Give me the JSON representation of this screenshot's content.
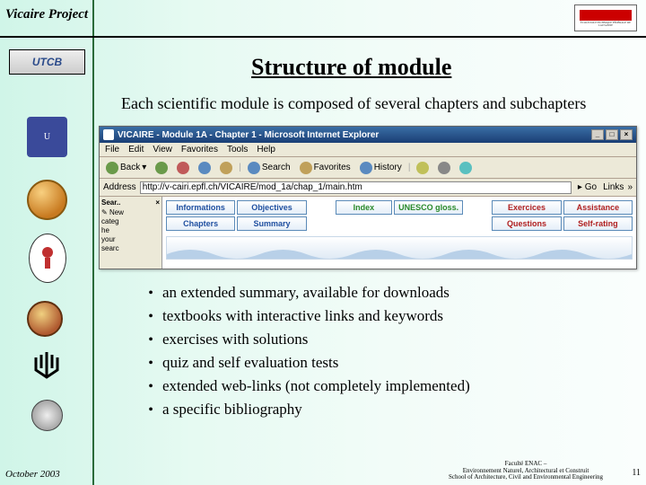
{
  "header": {
    "project": "Vicaire Project"
  },
  "logos": {
    "epfl_sub": "ÉCOLE POLYTECHNIQUE FÉDÉRALE DE LAUSANNE",
    "utcb_text": "UTCB"
  },
  "title": "Structure of module",
  "subtitle": "Each scientific module is composed of several chapters and subchapters",
  "browser": {
    "window_title": "VICAIRE - Module 1A - Chapter 1 - Microsoft Internet Explorer",
    "menus": [
      "File",
      "Edit",
      "View",
      "Favorites",
      "Tools",
      "Help"
    ],
    "toolbar": {
      "back": "Back",
      "search": "Search",
      "favorites": "Favorites",
      "history": "History"
    },
    "address_label": "Address",
    "address_value": "http://v-cairi.epfl.ch/VICAIRE/mod_1a/chap_1/main.htm",
    "go": "Go",
    "links": "Links",
    "leftpane": {
      "title": "Sear..",
      "new": "New",
      "items": [
        "categ",
        "he",
        "your",
        "searc"
      ]
    },
    "tabs_row1": [
      "Informations",
      "Objectives",
      "",
      "Index",
      "UNESCO gloss.",
      "",
      "Exercices",
      "Assistance"
    ],
    "tabs_row2": [
      "Chapters",
      "Summary",
      "",
      "",
      "",
      "",
      "Questions",
      "Self-rating"
    ],
    "tab_colors_row1": [
      "c-blue",
      "c-blue",
      "blank",
      "c-green",
      "c-green",
      "blank",
      "c-red",
      "c-red"
    ],
    "tab_colors_row2": [
      "c-blue",
      "c-blue",
      "blank",
      "blank",
      "blank",
      "blank",
      "c-red",
      "c-red"
    ]
  },
  "bullets": [
    "an extended summary, available for downloads",
    "textbooks with interactive links and keywords",
    "exercises with solutions",
    "quiz and self evaluation tests",
    "extended web-links (not completely implemented)",
    "a specific bibliography"
  ],
  "footer": {
    "left": "October 2003",
    "right_line1": "Faculté ENAC –",
    "right_line2": "Environnement Naturel, Architectural et Construit",
    "right_line3": "School of Architecture, Civil and Environmental Engineering",
    "page": "11"
  },
  "colors": {
    "stripe_border": "#2a6b3a",
    "bg_from": "#d0f5e8",
    "bg_to": "#fafefd",
    "epfl_bar": "#c00"
  }
}
